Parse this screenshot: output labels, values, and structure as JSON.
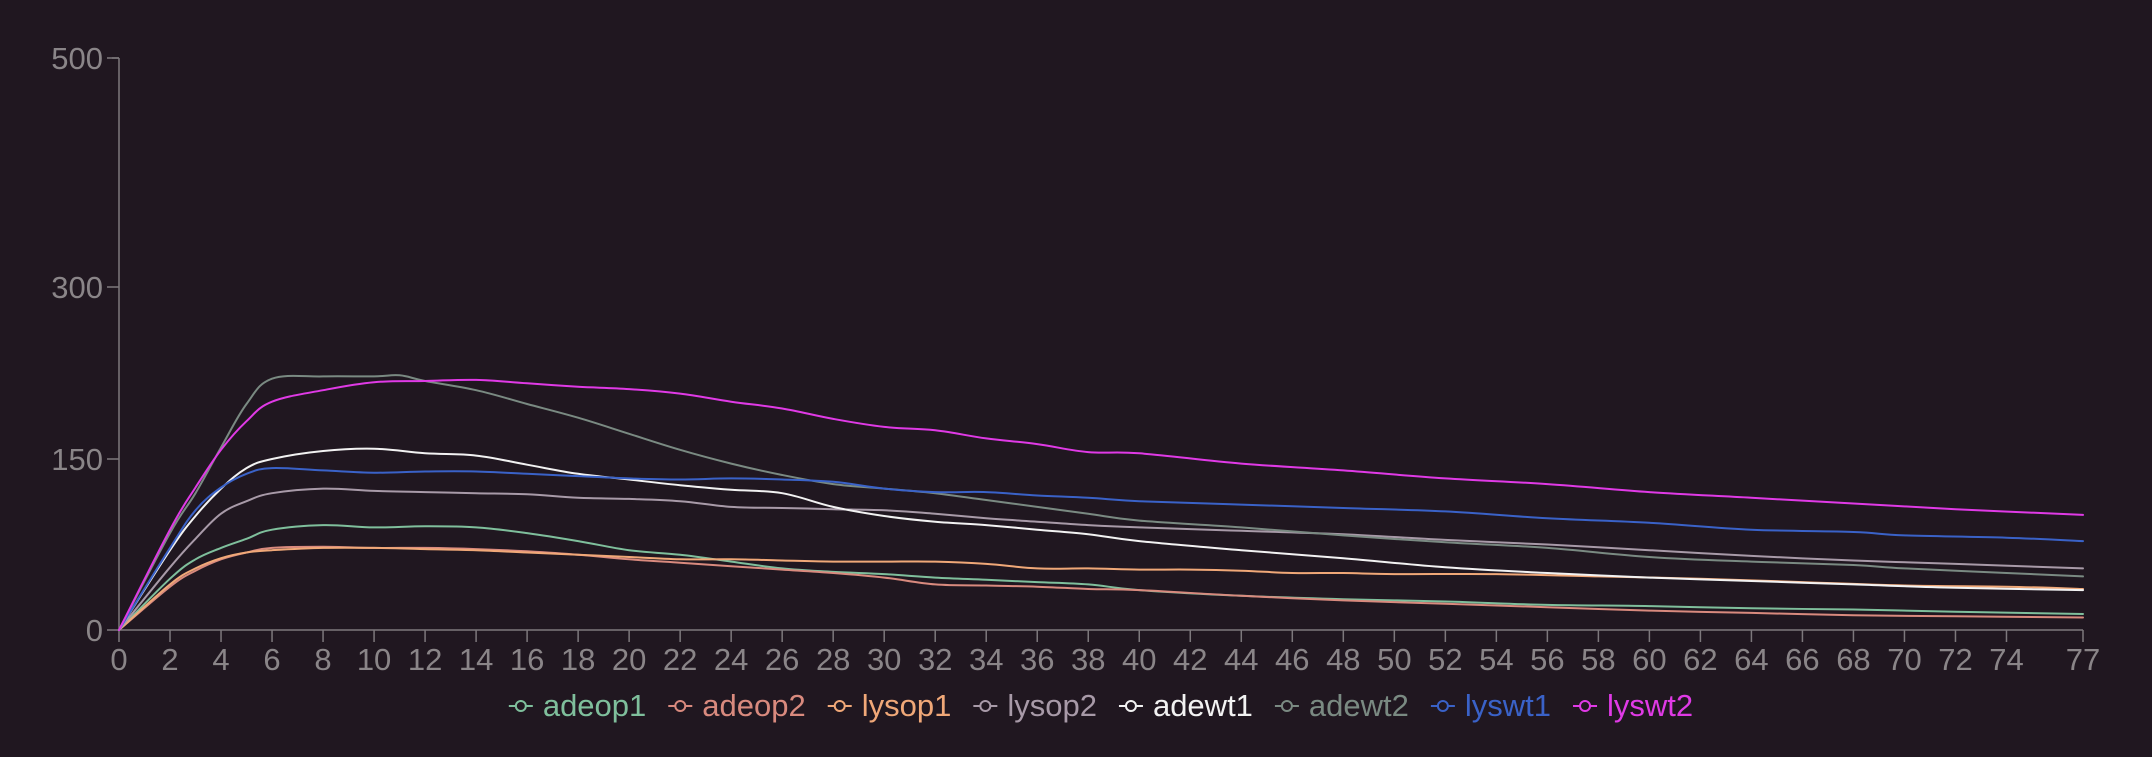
{
  "chart_data": {
    "type": "line",
    "title": "",
    "xlabel": "",
    "ylabel": "",
    "xlim": [
      0,
      77
    ],
    "ylim": [
      0,
      500
    ],
    "x_ticks": [
      0,
      2,
      4,
      6,
      8,
      10,
      12,
      14,
      16,
      18,
      20,
      22,
      24,
      26,
      28,
      30,
      32,
      34,
      36,
      38,
      40,
      42,
      44,
      46,
      48,
      50,
      52,
      54,
      56,
      58,
      60,
      62,
      64,
      66,
      68,
      70,
      72,
      74,
      77
    ],
    "y_ticks": [
      0,
      150,
      300,
      500
    ],
    "grid": false,
    "legend_position": "bottom",
    "series": [
      {
        "name": "adeop1",
        "color": "#7fbf9c",
        "points": [
          [
            0,
            0
          ],
          [
            2,
            45
          ],
          [
            3,
            62
          ],
          [
            4,
            72
          ],
          [
            5,
            80
          ],
          [
            6,
            88
          ],
          [
            8,
            92
          ],
          [
            10,
            90
          ],
          [
            12,
            91
          ],
          [
            14,
            90
          ],
          [
            16,
            85
          ],
          [
            18,
            78
          ],
          [
            20,
            70
          ],
          [
            22,
            66
          ],
          [
            24,
            60
          ],
          [
            26,
            54
          ],
          [
            28,
            51
          ],
          [
            30,
            49
          ],
          [
            32,
            46
          ],
          [
            34,
            44
          ],
          [
            36,
            42
          ],
          [
            38,
            40
          ],
          [
            40,
            35
          ],
          [
            44,
            30
          ],
          [
            48,
            27
          ],
          [
            52,
            25
          ],
          [
            56,
            22
          ],
          [
            60,
            21
          ],
          [
            64,
            19
          ],
          [
            68,
            18
          ],
          [
            72,
            16
          ],
          [
            77,
            14
          ]
        ]
      },
      {
        "name": "adeop2",
        "color": "#d98a7e",
        "points": [
          [
            0,
            0
          ],
          [
            2,
            38
          ],
          [
            3,
            52
          ],
          [
            4,
            62
          ],
          [
            5,
            68
          ],
          [
            6,
            72
          ],
          [
            8,
            73
          ],
          [
            10,
            72
          ],
          [
            12,
            72
          ],
          [
            14,
            71
          ],
          [
            16,
            69
          ],
          [
            18,
            66
          ],
          [
            20,
            62
          ],
          [
            22,
            59
          ],
          [
            24,
            56
          ],
          [
            26,
            53
          ],
          [
            28,
            50
          ],
          [
            30,
            46
          ],
          [
            32,
            40
          ],
          [
            34,
            39
          ],
          [
            36,
            38
          ],
          [
            38,
            36
          ],
          [
            40,
            35
          ],
          [
            44,
            30
          ],
          [
            48,
            26
          ],
          [
            52,
            23
          ],
          [
            56,
            20
          ],
          [
            60,
            17
          ],
          [
            64,
            15
          ],
          [
            68,
            13
          ],
          [
            72,
            12
          ],
          [
            77,
            11
          ]
        ]
      },
      {
        "name": "lysop1",
        "color": "#f0a878",
        "points": [
          [
            0,
            0
          ],
          [
            2,
            40
          ],
          [
            3,
            54
          ],
          [
            4,
            63
          ],
          [
            5,
            68
          ],
          [
            6,
            70
          ],
          [
            8,
            72
          ],
          [
            10,
            72
          ],
          [
            12,
            71
          ],
          [
            14,
            70
          ],
          [
            16,
            68
          ],
          [
            18,
            66
          ],
          [
            20,
            64
          ],
          [
            22,
            62
          ],
          [
            24,
            62
          ],
          [
            26,
            61
          ],
          [
            28,
            60
          ],
          [
            30,
            60
          ],
          [
            32,
            60
          ],
          [
            34,
            58
          ],
          [
            36,
            54
          ],
          [
            38,
            54
          ],
          [
            40,
            53
          ],
          [
            42,
            53
          ],
          [
            44,
            52
          ],
          [
            46,
            50
          ],
          [
            48,
            50
          ],
          [
            50,
            49
          ],
          [
            54,
            49
          ],
          [
            58,
            47
          ],
          [
            62,
            45
          ],
          [
            66,
            42
          ],
          [
            70,
            39
          ],
          [
            74,
            38
          ],
          [
            77,
            36
          ]
        ]
      },
      {
        "name": "lysop2",
        "color": "#a89aa8",
        "points": [
          [
            0,
            0
          ],
          [
            2,
            55
          ],
          [
            3,
            80
          ],
          [
            4,
            102
          ],
          [
            5,
            113
          ],
          [
            6,
            120
          ],
          [
            8,
            124
          ],
          [
            10,
            122
          ],
          [
            12,
            121
          ],
          [
            14,
            120
          ],
          [
            16,
            119
          ],
          [
            18,
            116
          ],
          [
            20,
            115
          ],
          [
            22,
            113
          ],
          [
            24,
            108
          ],
          [
            26,
            107
          ],
          [
            28,
            106
          ],
          [
            30,
            105
          ],
          [
            32,
            102
          ],
          [
            34,
            98
          ],
          [
            36,
            95
          ],
          [
            38,
            92
          ],
          [
            40,
            90
          ],
          [
            44,
            87
          ],
          [
            48,
            84
          ],
          [
            52,
            79
          ],
          [
            56,
            75
          ],
          [
            60,
            70
          ],
          [
            64,
            65
          ],
          [
            68,
            61
          ],
          [
            72,
            58
          ],
          [
            77,
            54
          ]
        ]
      },
      {
        "name": "adewt1",
        "color": "#f2f2f2",
        "points": [
          [
            0,
            0
          ],
          [
            2,
            70
          ],
          [
            3,
            100
          ],
          [
            4,
            124
          ],
          [
            5,
            142
          ],
          [
            6,
            150
          ],
          [
            8,
            157
          ],
          [
            10,
            159
          ],
          [
            12,
            155
          ],
          [
            14,
            153
          ],
          [
            16,
            145
          ],
          [
            18,
            137
          ],
          [
            20,
            132
          ],
          [
            22,
            127
          ],
          [
            24,
            123
          ],
          [
            26,
            120
          ],
          [
            28,
            108
          ],
          [
            30,
            100
          ],
          [
            32,
            95
          ],
          [
            34,
            92
          ],
          [
            36,
            88
          ],
          [
            38,
            84
          ],
          [
            40,
            78
          ],
          [
            44,
            70
          ],
          [
            48,
            63
          ],
          [
            52,
            55
          ],
          [
            56,
            50
          ],
          [
            60,
            46
          ],
          [
            64,
            43
          ],
          [
            68,
            40
          ],
          [
            72,
            37
          ],
          [
            77,
            35
          ]
        ]
      },
      {
        "name": "adewt2",
        "color": "#7a8a82",
        "points": [
          [
            0,
            0
          ],
          [
            2,
            85
          ],
          [
            3,
            120
          ],
          [
            4,
            160
          ],
          [
            5,
            198
          ],
          [
            6,
            220
          ],
          [
            8,
            222
          ],
          [
            10,
            222
          ],
          [
            11,
            223
          ],
          [
            12,
            218
          ],
          [
            14,
            210
          ],
          [
            16,
            198
          ],
          [
            18,
            186
          ],
          [
            20,
            172
          ],
          [
            22,
            158
          ],
          [
            24,
            146
          ],
          [
            26,
            136
          ],
          [
            28,
            128
          ],
          [
            30,
            124
          ],
          [
            32,
            120
          ],
          [
            34,
            114
          ],
          [
            36,
            108
          ],
          [
            38,
            102
          ],
          [
            40,
            96
          ],
          [
            44,
            90
          ],
          [
            48,
            83
          ],
          [
            52,
            77
          ],
          [
            56,
            72
          ],
          [
            60,
            64
          ],
          [
            64,
            60
          ],
          [
            68,
            57
          ],
          [
            70,
            54
          ],
          [
            74,
            50
          ],
          [
            77,
            47
          ]
        ]
      },
      {
        "name": "lyswt1",
        "color": "#3a62c8",
        "points": [
          [
            0,
            0
          ],
          [
            2,
            72
          ],
          [
            3,
            105
          ],
          [
            4,
            125
          ],
          [
            5,
            137
          ],
          [
            6,
            142
          ],
          [
            8,
            140
          ],
          [
            10,
            138
          ],
          [
            12,
            139
          ],
          [
            14,
            139
          ],
          [
            16,
            137
          ],
          [
            18,
            135
          ],
          [
            20,
            133
          ],
          [
            22,
            132
          ],
          [
            24,
            133
          ],
          [
            26,
            132
          ],
          [
            28,
            130
          ],
          [
            30,
            124
          ],
          [
            32,
            121
          ],
          [
            34,
            121
          ],
          [
            36,
            118
          ],
          [
            38,
            116
          ],
          [
            40,
            113
          ],
          [
            44,
            110
          ],
          [
            48,
            107
          ],
          [
            52,
            104
          ],
          [
            56,
            98
          ],
          [
            60,
            94
          ],
          [
            64,
            88
          ],
          [
            68,
            86
          ],
          [
            70,
            83
          ],
          [
            74,
            81
          ],
          [
            77,
            78
          ]
        ]
      },
      {
        "name": "lyswt2",
        "color": "#e03ae6",
        "points": [
          [
            0,
            0
          ],
          [
            2,
            88
          ],
          [
            3,
            125
          ],
          [
            4,
            158
          ],
          [
            5,
            183
          ],
          [
            6,
            200
          ],
          [
            8,
            210
          ],
          [
            10,
            217
          ],
          [
            12,
            218
          ],
          [
            14,
            219
          ],
          [
            16,
            216
          ],
          [
            18,
            213
          ],
          [
            20,
            211
          ],
          [
            22,
            207
          ],
          [
            24,
            200
          ],
          [
            26,
            194
          ],
          [
            28,
            185
          ],
          [
            30,
            178
          ],
          [
            32,
            175
          ],
          [
            34,
            168
          ],
          [
            36,
            163
          ],
          [
            38,
            156
          ],
          [
            40,
            155
          ],
          [
            44,
            146
          ],
          [
            48,
            140
          ],
          [
            52,
            133
          ],
          [
            56,
            128
          ],
          [
            60,
            121
          ],
          [
            64,
            116
          ],
          [
            68,
            111
          ],
          [
            72,
            106
          ],
          [
            77,
            101
          ]
        ]
      }
    ]
  }
}
